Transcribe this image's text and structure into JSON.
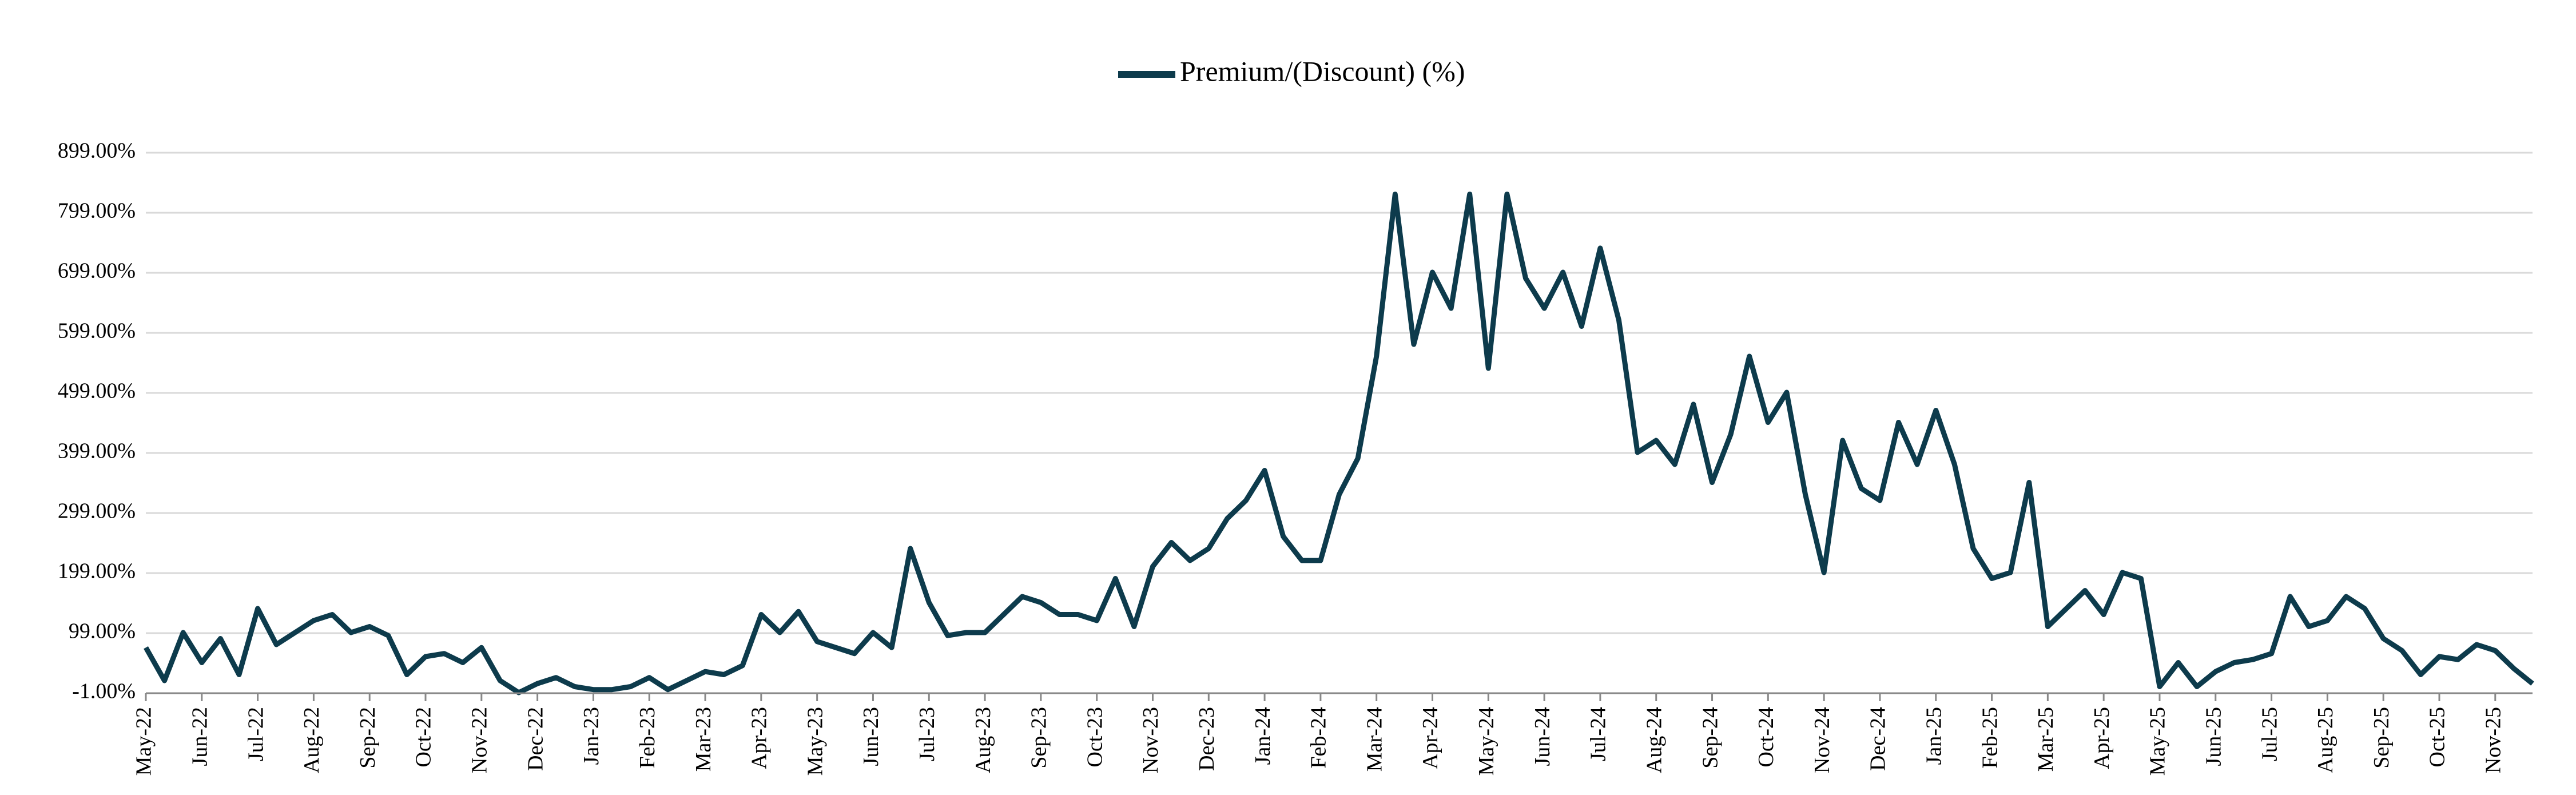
{
  "chart_data": {
    "type": "line",
    "categories": [
      "May-22",
      null,
      null,
      "Jun-22",
      null,
      null,
      "Jul-22",
      null,
      null,
      "Aug-22",
      null,
      null,
      "Sep-22",
      null,
      null,
      "Oct-22",
      null,
      null,
      "Nov-22",
      null,
      null,
      "Dec-22",
      null,
      null,
      "Jan-23",
      null,
      null,
      "Feb-23",
      null,
      null,
      "Mar-23",
      null,
      null,
      "Apr-23",
      null,
      null,
      "May-23",
      null,
      null,
      "Jun-23",
      null,
      null,
      "Jul-23",
      null,
      null,
      "Aug-23",
      null,
      null,
      "Sep-23",
      null,
      null,
      "Oct-23",
      null,
      null,
      "Nov-23",
      null,
      null,
      "Dec-23",
      null,
      null,
      "Jan-24",
      null,
      null,
      "Feb-24",
      null,
      null,
      "Mar-24",
      null,
      null,
      "Apr-24",
      null,
      null,
      "May-24",
      null,
      null,
      "Jun-24",
      null,
      null,
      "Jul-24",
      null,
      null,
      "Aug-24",
      null,
      null,
      "Sep-24",
      null,
      null,
      "Oct-24",
      null,
      null,
      "Nov-24",
      null,
      null,
      "Dec-24",
      null,
      null,
      "Jan-25",
      null,
      null,
      "Feb-25",
      null,
      null,
      "Mar-25",
      null,
      null,
      "Apr-25",
      null,
      null,
      "May-25",
      null,
      null,
      "Jun-25",
      null,
      null,
      "Jul-25",
      null,
      null,
      "Aug-25",
      null,
      null,
      "Sep-25",
      null,
      null,
      "Oct-25",
      null,
      null,
      "Nov-25",
      null,
      null
    ],
    "series": [
      {
        "name": "Premium/(Discount) (%)",
        "color": "#0d3b4c",
        "values": [
          75,
          20,
          100,
          50,
          90,
          30,
          140,
          80,
          100,
          120,
          130,
          100,
          110,
          95,
          30,
          60,
          65,
          50,
          75,
          20,
          0,
          15,
          25,
          10,
          5,
          5,
          10,
          25,
          5,
          20,
          35,
          30,
          45,
          130,
          100,
          135,
          85,
          75,
          65,
          100,
          75,
          240,
          150,
          95,
          100,
          100,
          130,
          160,
          150,
          130,
          130,
          120,
          190,
          110,
          210,
          250,
          220,
          240,
          290,
          320,
          370,
          260,
          220,
          220,
          330,
          390,
          560,
          830,
          580,
          700,
          640,
          830,
          540,
          830,
          690,
          640,
          700,
          610,
          740,
          620,
          400,
          420,
          380,
          480,
          350,
          430,
          560,
          450,
          500,
          330,
          200,
          420,
          340,
          320,
          450,
          380,
          470,
          380,
          240,
          190,
          200,
          350,
          110,
          140,
          170,
          130,
          200,
          190,
          10,
          50,
          10,
          35,
          50,
          55,
          65,
          160,
          110,
          120,
          160,
          140,
          90,
          70,
          30,
          60,
          55,
          80,
          70,
          40,
          15
        ]
      }
    ],
    "ylim": [
      -1,
      899
    ],
    "yticks": [
      {
        "value": -1,
        "label": "-1.00%"
      },
      {
        "value": 99,
        "label": "99.00%"
      },
      {
        "value": 199,
        "label": "199.00%"
      },
      {
        "value": 299,
        "label": "299.00%"
      },
      {
        "value": 399,
        "label": "399.00%"
      },
      {
        "value": 499,
        "label": "499.00%"
      },
      {
        "value": 599,
        "label": "599.00%"
      },
      {
        "value": 699,
        "label": "699.00%"
      },
      {
        "value": 799,
        "label": "799.00%"
      },
      {
        "value": 899,
        "label": "899.00%"
      }
    ],
    "grid": true,
    "legend": "top"
  }
}
